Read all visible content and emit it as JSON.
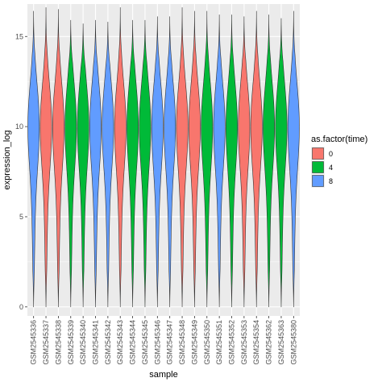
{
  "chart_data": {
    "type": "violin",
    "title": "",
    "xlabel": "sample",
    "ylabel": "expression_log",
    "ylim": [
      -0.5,
      16.8
    ],
    "yticks": [
      0,
      5,
      10,
      15
    ],
    "grid": true,
    "legend": {
      "title": "as.factor(time)",
      "position": "right",
      "entries": [
        {
          "label": "0",
          "color": "#F8766D"
        },
        {
          "label": "4",
          "color": "#00BA38"
        },
        {
          "label": "8",
          "color": "#619CFF"
        }
      ]
    },
    "categories": [
      "GSM2545336",
      "GSM2545337",
      "GSM2545338",
      "GSM2545339",
      "GSM2545340",
      "GSM2545341",
      "GSM2545342",
      "GSM2545343",
      "GSM2545344",
      "GSM2545345",
      "GSM2545346",
      "GSM2545347",
      "GSM2545348",
      "GSM2545349",
      "GSM2545350",
      "GSM2545351",
      "GSM2545352",
      "GSM2545353",
      "GSM2545354",
      "GSM2545362",
      "GSM2545363",
      "GSM2545380"
    ],
    "group": [
      "8",
      "0",
      "0",
      "4",
      "4",
      "8",
      "8",
      "0",
      "4",
      "4",
      "8",
      "8",
      "0",
      "0",
      "4",
      "8",
      "4",
      "0",
      "0",
      "4",
      "4",
      "8"
    ],
    "max": [
      16.4,
      16.6,
      16.5,
      15.9,
      15.7,
      15.9,
      15.8,
      16.6,
      15.9,
      15.9,
      16.1,
      16.1,
      16.6,
      16.4,
      16.4,
      16.2,
      16.2,
      16.1,
      16.4,
      16.2,
      16.0,
      16.4
    ],
    "min": [
      0,
      0,
      0,
      0,
      0,
      0,
      0,
      0,
      0,
      0,
      0,
      0,
      0,
      0,
      0,
      0,
      0,
      0,
      0,
      0,
      0,
      0
    ]
  }
}
